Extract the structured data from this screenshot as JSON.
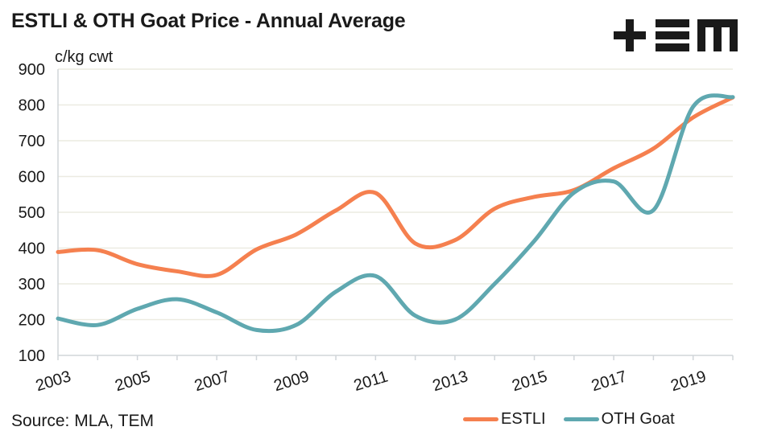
{
  "title": "ESTLI & OTH Goat Price - Annual Average",
  "logo_text": "+EM",
  "source": "Source: MLA, TEM",
  "colors": {
    "estli": "#f5804f",
    "oth": "#5fa8b0",
    "grid": "#ecebe1",
    "axis": "#d0d5d9"
  },
  "chart_data": {
    "type": "line",
    "title": "ESTLI & OTH Goat Price - Annual Average",
    "ylabel": "c/kg cwt",
    "xlabel": "",
    "ylim": [
      100,
      900
    ],
    "yticks": [
      100,
      200,
      300,
      400,
      500,
      600,
      700,
      800,
      900
    ],
    "xlim": [
      2003,
      2020
    ],
    "xtick_labels": [
      "2003",
      "2005",
      "2007",
      "2009",
      "2011",
      "2013",
      "2015",
      "2017",
      "2019"
    ],
    "grid": true,
    "legend_position": "bottom-right",
    "x": [
      2003,
      2004,
      2005,
      2006,
      2007,
      2008,
      2009,
      2010,
      2011,
      2012,
      2013,
      2014,
      2015,
      2016,
      2017,
      2018,
      2019,
      2020
    ],
    "series": [
      {
        "name": "ESTLI",
        "values": [
          389,
          394,
          355,
          335,
          325,
          396,
          438,
          505,
          554,
          413,
          422,
          510,
          543,
          562,
          623,
          678,
          765,
          821
        ]
      },
      {
        "name": "OTH Goat",
        "values": [
          203,
          185,
          230,
          257,
          220,
          171,
          185,
          278,
          322,
          211,
          200,
          300,
          420,
          555,
          586,
          506,
          795,
          822
        ]
      }
    ]
  }
}
